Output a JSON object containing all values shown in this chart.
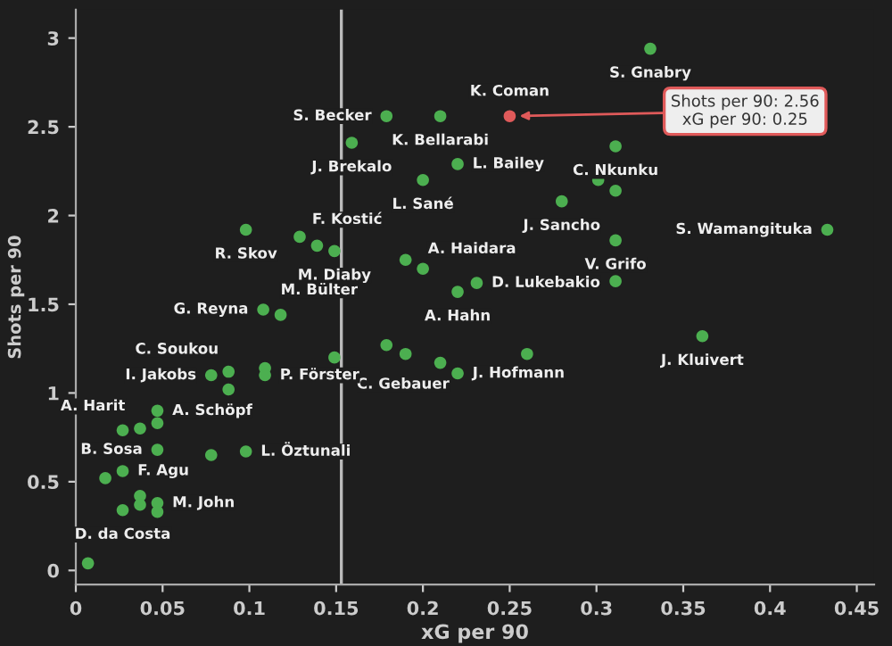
{
  "chart_data": {
    "type": "scatter",
    "xlabel": "xG per 90",
    "ylabel": "Shots per 90",
    "x": [
      0.331,
      0.25,
      0.179,
      0.21,
      0.159,
      0.22,
      0.2,
      0.311,
      0.301,
      0.311,
      0.28,
      0.433,
      0.098,
      0.129,
      0.139,
      0.149,
      0.19,
      0.2,
      0.311,
      0.231,
      0.311,
      0.22,
      0.108,
      0.118,
      0.361,
      0.179,
      0.19,
      0.26,
      0.149,
      0.21,
      0.22,
      0.078,
      0.088,
      0.109,
      0.109,
      0.088,
      0.047,
      0.047,
      0.027,
      0.037,
      0.047,
      0.078,
      0.098,
      0.017,
      0.027,
      0.037,
      0.037,
      0.047,
      0.047,
      0.027,
      0.007
    ],
    "series": [
      {
        "colors": [
          "#4caf50",
          "#e05a5a",
          "#4caf50",
          "#4caf50",
          "#4caf50",
          "#4caf50",
          "#4caf50",
          "#4caf50",
          "#4caf50",
          "#4caf50",
          "#4caf50",
          "#4caf50",
          "#4caf50",
          "#4caf50",
          "#4caf50",
          "#4caf50",
          "#4caf50",
          "#4caf50",
          "#4caf50",
          "#4caf50",
          "#4caf50",
          "#4caf50",
          "#4caf50",
          "#4caf50",
          "#4caf50",
          "#4caf50",
          "#4caf50",
          "#4caf50",
          "#4caf50",
          "#4caf50",
          "#4caf50",
          "#4caf50",
          "#4caf50",
          "#4caf50",
          "#4caf50",
          "#4caf50",
          "#4caf50",
          "#4caf50",
          "#4caf50",
          "#4caf50",
          "#4caf50",
          "#4caf50",
          "#4caf50",
          "#4caf50",
          "#4caf50",
          "#4caf50",
          "#4caf50",
          "#4caf50",
          "#4caf50",
          "#4caf50",
          "#4caf50"
        ],
        "values": [
          2.94,
          2.56,
          2.56,
          2.56,
          2.41,
          2.29,
          2.2,
          2.39,
          2.2,
          2.14,
          2.08,
          1.92,
          1.92,
          1.88,
          1.83,
          1.8,
          1.75,
          1.7,
          1.86,
          1.62,
          1.63,
          1.57,
          1.47,
          1.44,
          1.32,
          1.27,
          1.22,
          1.22,
          1.2,
          1.17,
          1.11,
          1.1,
          1.12,
          1.14,
          1.1,
          1.02,
          0.9,
          0.83,
          0.79,
          0.8,
          0.68,
          0.65,
          0.67,
          0.52,
          0.56,
          0.42,
          0.37,
          0.38,
          0.33,
          0.34,
          0.04
        ]
      }
    ],
    "xlim": [
      0,
      0.46
    ],
    "ylim": [
      -0.08,
      3.16
    ],
    "xticks": [
      0,
      0.05,
      0.1,
      0.15,
      0.2,
      0.25,
      0.3,
      0.35,
      0.4,
      0.45
    ],
    "yticks": [
      0,
      0.5,
      1,
      1.5,
      2,
      2.5,
      3
    ],
    "grid": false,
    "marker": "circle",
    "ref_lines": [
      {
        "axis": "x",
        "value": 0.153,
        "color": "#bbbbbb"
      }
    ],
    "annotations": [
      {
        "text": "S. Gnabry",
        "x": 0.331,
        "y": 2.94
      },
      {
        "text": "K. Coman",
        "x": 0.25,
        "y": 2.56
      },
      {
        "text": "S. Becker",
        "x": 0.179,
        "y": 2.56
      },
      {
        "text": "K. Bellarabi",
        "x": 0.21,
        "y": 2.56
      },
      {
        "text": "J. Brekalo",
        "x": 0.159,
        "y": 2.41
      },
      {
        "text": "L. Bailey",
        "x": 0.22,
        "y": 2.29
      },
      {
        "text": "L. Sané",
        "x": 0.2,
        "y": 2.2
      },
      {
        "text": "C. Nkunku",
        "x": 0.311,
        "y": 2.39
      },
      {
        "text": "J. Sancho",
        "x": 0.28,
        "y": 2.08
      },
      {
        "text": "S. Wamangituka",
        "x": 0.433,
        "y": 1.92
      },
      {
        "text": "R. Skov",
        "x": 0.098,
        "y": 1.92
      },
      {
        "text": "F. Kostić",
        "x": 0.129,
        "y": 1.88
      },
      {
        "text": "M. Diaby",
        "x": 0.149,
        "y": 1.8
      },
      {
        "text": "A. Haidara",
        "x": 0.2,
        "y": 1.7
      },
      {
        "text": "V. Grifo",
        "x": 0.311,
        "y": 1.86
      },
      {
        "text": "D. Lukebakio",
        "x": 0.231,
        "y": 1.62
      },
      {
        "text": "A. Hahn",
        "x": 0.22,
        "y": 1.57
      },
      {
        "text": "G. Reyna",
        "x": 0.108,
        "y": 1.47
      },
      {
        "text": "M. Bülter",
        "x": 0.118,
        "y": 1.44
      },
      {
        "text": "J. Kluivert",
        "x": 0.361,
        "y": 1.32
      },
      {
        "text": "C. Gebauer",
        "x": 0.149,
        "y": 1.2
      },
      {
        "text": "J. Hofmann",
        "x": 0.22,
        "y": 1.11
      },
      {
        "text": "I. Jakobs",
        "x": 0.078,
        "y": 1.1
      },
      {
        "text": "C. Soukou",
        "x": 0.088,
        "y": 1.12
      },
      {
        "text": "P. Förster",
        "x": 0.109,
        "y": 1.1
      },
      {
        "text": "A. Schöpf",
        "x": 0.047,
        "y": 0.9
      },
      {
        "text": "A. Harit",
        "x": 0.037,
        "y": 0.8
      },
      {
        "text": "B. Sosa",
        "x": 0.047,
        "y": 0.68
      },
      {
        "text": "L. Öztunali",
        "x": 0.098,
        "y": 0.67
      },
      {
        "text": "F. Agu",
        "x": 0.027,
        "y": 0.56
      },
      {
        "text": "M. John",
        "x": 0.047,
        "y": 0.38
      },
      {
        "text": "D. da Costa",
        "x": 0.027,
        "y": 0.34
      },
      {
        "text": "Shots per 90: 2.56\nxG per 90: 0.25",
        "x": 0.25,
        "y": 2.56
      }
    ]
  }
}
